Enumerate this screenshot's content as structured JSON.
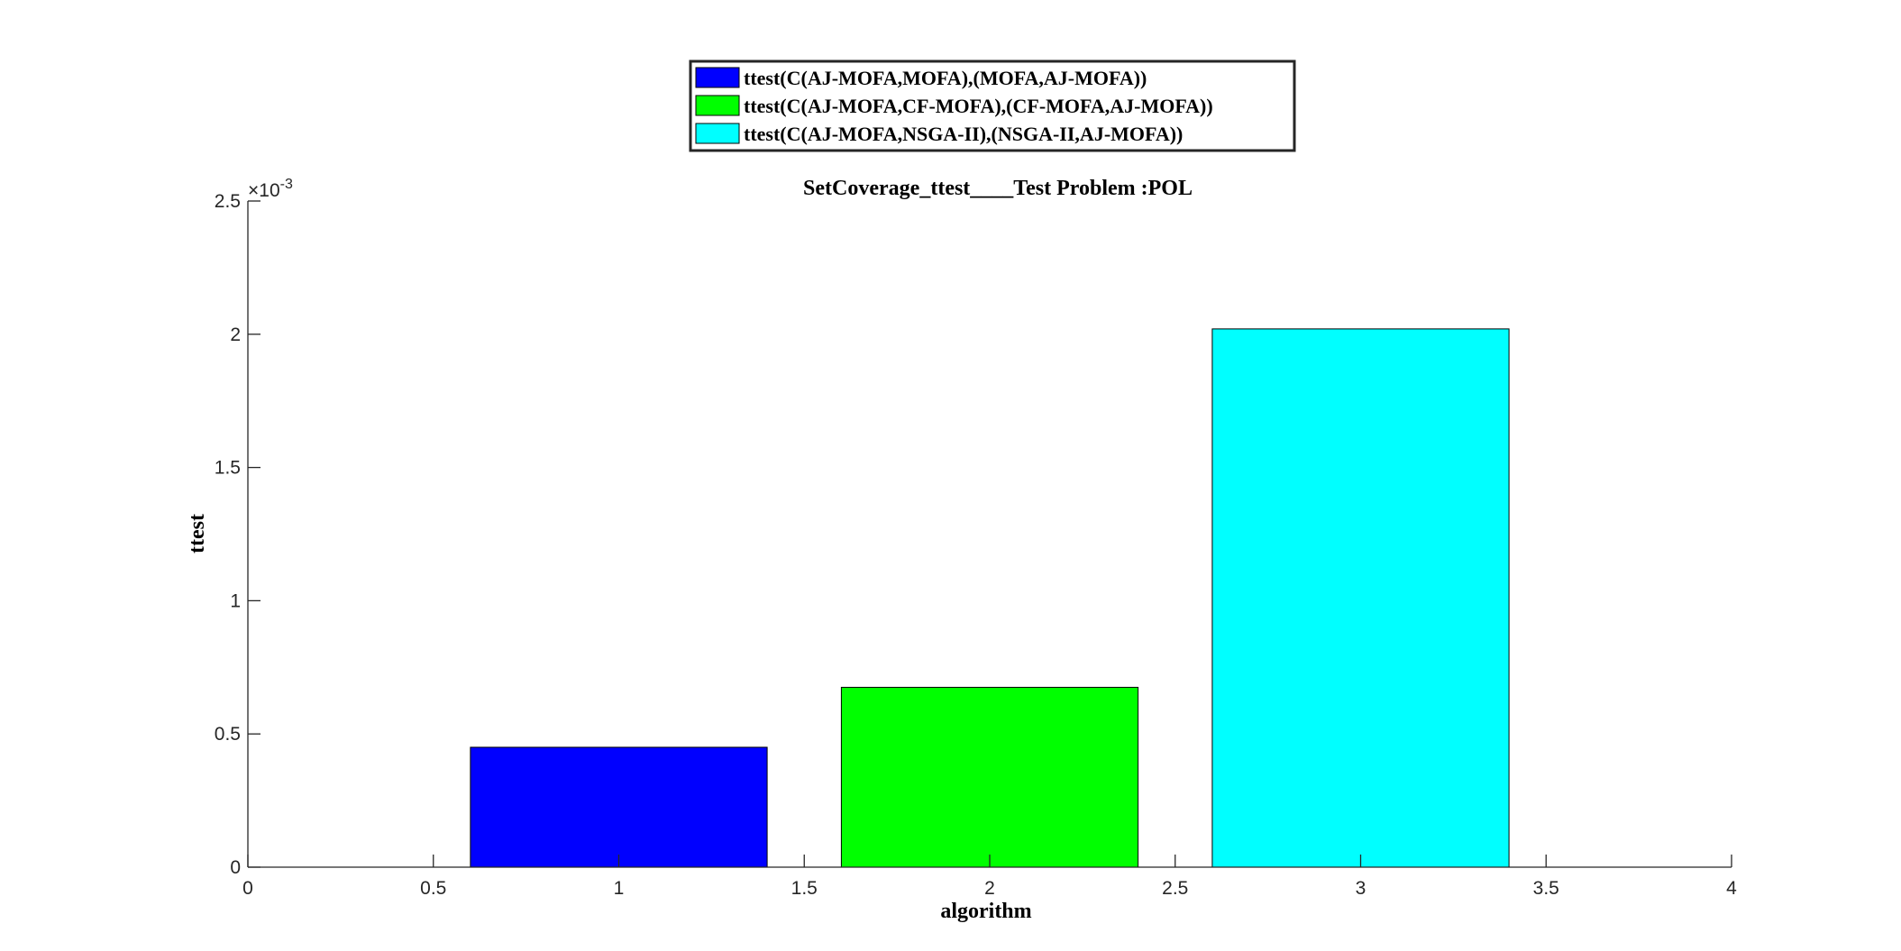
{
  "chart_data": {
    "type": "bar",
    "title": "SetCoverage_ttest____Test Problem :POL",
    "xlabel": "algorithm",
    "ylabel": "ttest",
    "y_exponent_label": "×10",
    "y_exponent_power": "-3",
    "xlim": [
      0,
      4
    ],
    "ylim": [
      0,
      2.5
    ],
    "x_ticks": [
      0,
      0.5,
      1,
      1.5,
      2,
      2.5,
      3,
      3.5,
      4
    ],
    "x_tick_labels": [
      "0",
      "0.5",
      "1",
      "1.5",
      "2",
      "2.5",
      "3",
      "3.5",
      "4"
    ],
    "y_ticks": [
      0,
      0.5,
      1,
      1.5,
      2,
      2.5
    ],
    "y_tick_labels": [
      "0",
      "0.5",
      "1",
      "1.5",
      "2",
      "2.5"
    ],
    "bar_width": 0.8,
    "series": [
      {
        "name": "ttest(C(AJ-MOFA,MOFA),(MOFA,AJ-MOFA))",
        "x": 1,
        "value": 0.45,
        "color": "#0000FF"
      },
      {
        "name": "ttest(C(AJ-MOFA,CF-MOFA),(CF-MOFA,AJ-MOFA))",
        "x": 2,
        "value": 0.675,
        "color": "#00FF00"
      },
      {
        "name": "ttest(C(AJ-MOFA,NSGA-II),(NSGA-II,AJ-MOFA))",
        "x": 3,
        "value": 2.02,
        "color": "#00FFFF"
      }
    ],
    "grid": false,
    "legend_position": "top-center"
  }
}
